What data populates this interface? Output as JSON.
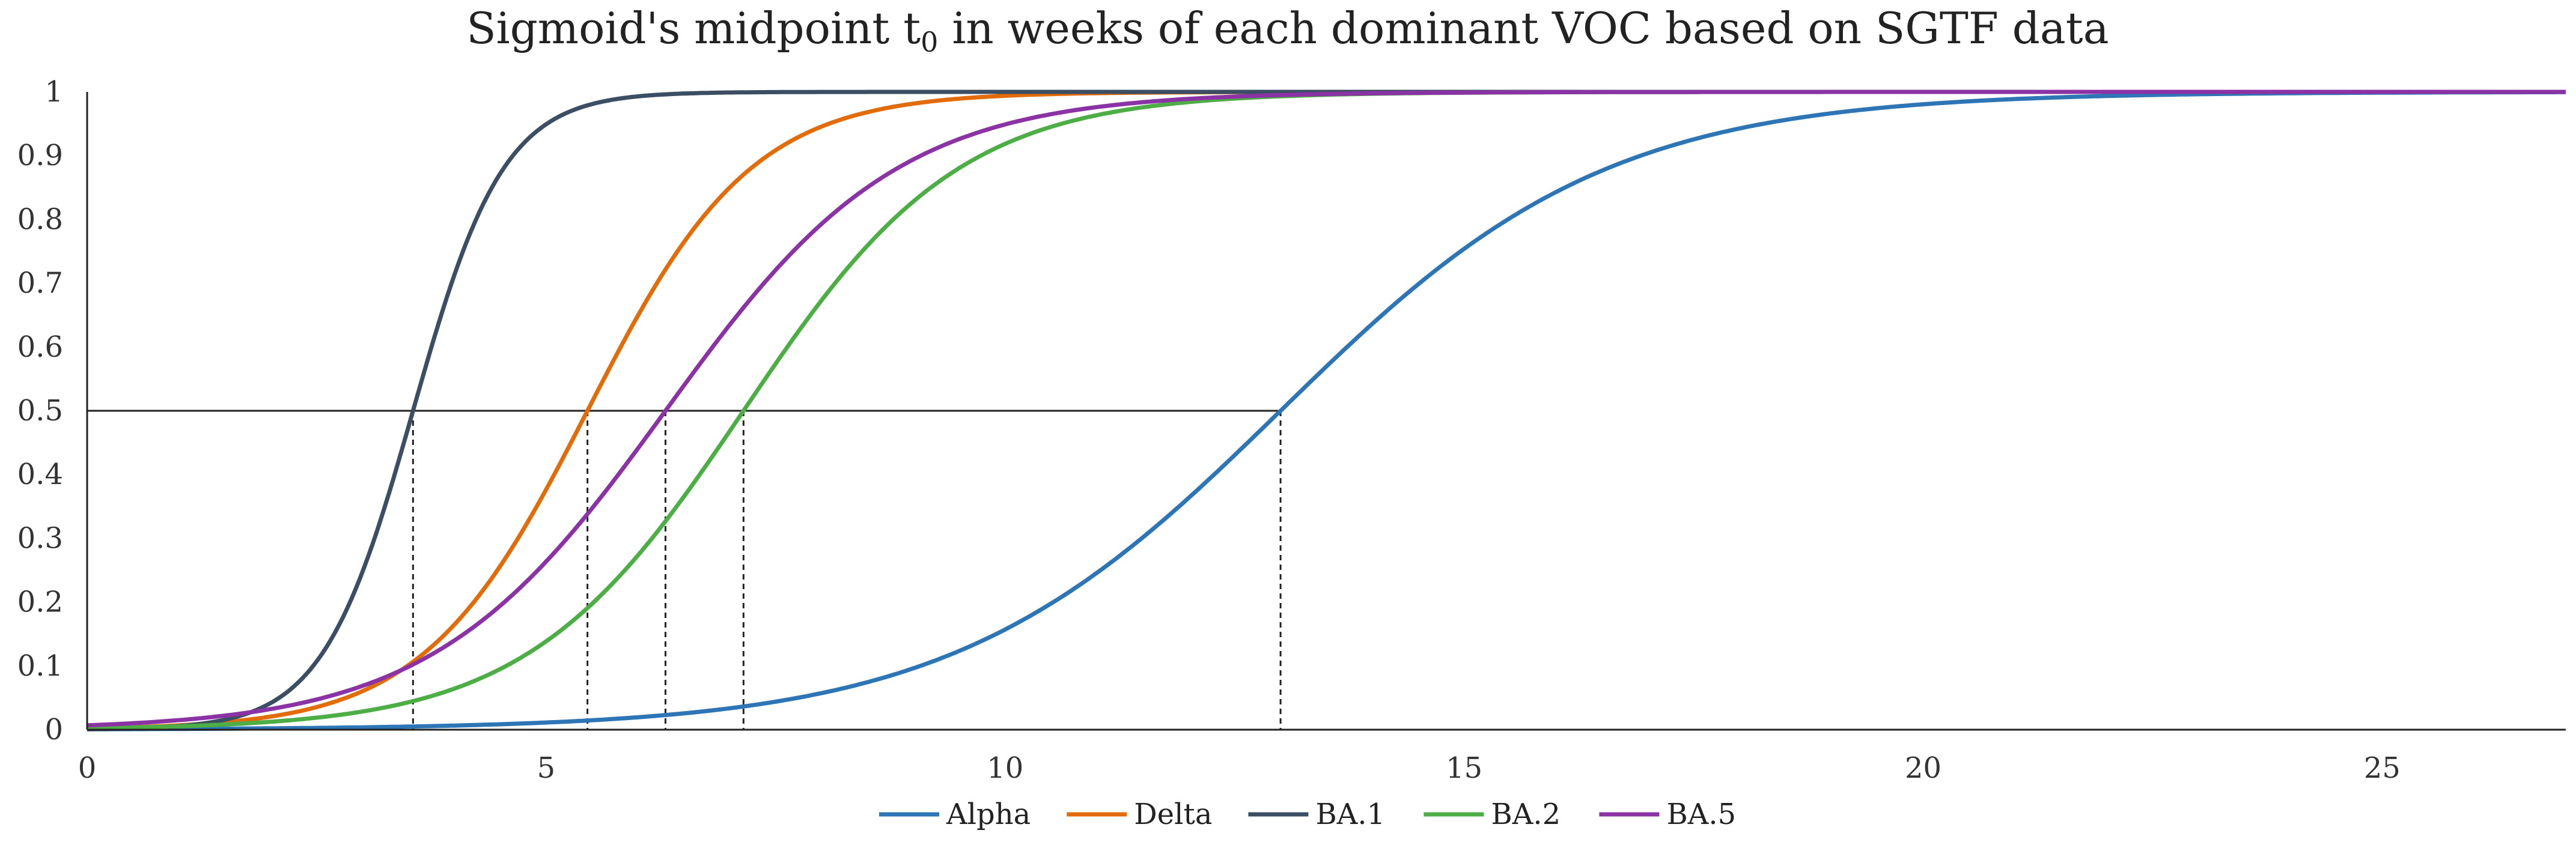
{
  "chart_data": {
    "type": "line",
    "title_main": "Sigmoid's midpoint t",
    "title_sub": "0",
    "title_rest": " in weeks of each dominant VOC based on SGTF data",
    "xlim": [
      0,
      27
    ],
    "ylim": [
      0,
      1
    ],
    "x_ticks": [
      "0",
      "5",
      "10",
      "15",
      "20",
      "25"
    ],
    "y_ticks": [
      "0",
      "0.1",
      "0.2",
      "0.3",
      "0.4",
      "0.5",
      "0.6",
      "0.7",
      "0.8",
      "0.9",
      "1"
    ],
    "series": [
      {
        "name": "Alpha",
        "color": "#2E75B6",
        "t0": 13.0,
        "k": 0.56
      },
      {
        "name": "Delta",
        "color": "#E36C0A",
        "t0": 5.45,
        "k": 1.12
      },
      {
        "name": "BA.1",
        "color": "#3B4E63",
        "t0": 3.55,
        "k": 2.02
      },
      {
        "name": "BA.2",
        "color": "#4DAE46",
        "t0": 7.15,
        "k": 0.85
      },
      {
        "name": "BA.5",
        "color": "#8B33A5",
        "t0": 6.3,
        "k": 0.79
      }
    ],
    "reference_line": {
      "y": 0.5
    },
    "midpoints": [
      3.55,
      5.45,
      6.3,
      7.15,
      13.0
    ]
  }
}
